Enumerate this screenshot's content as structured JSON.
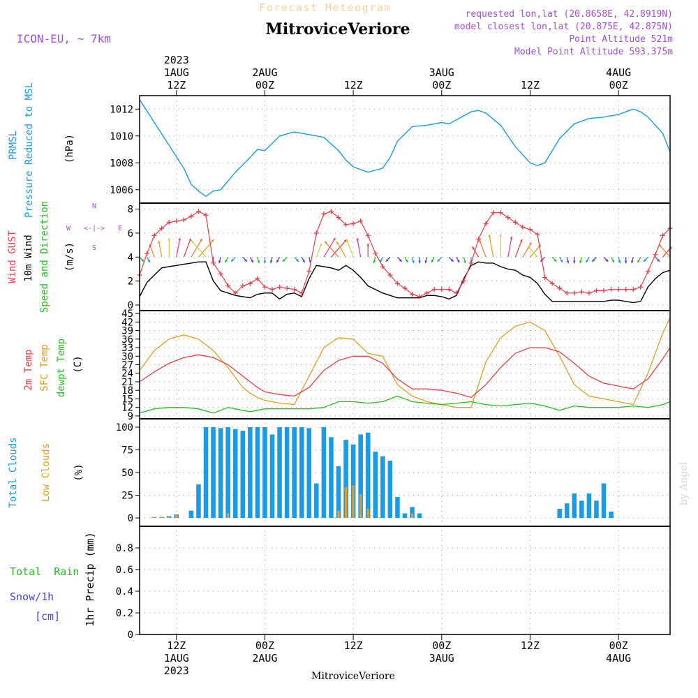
{
  "header": {
    "product_title": "Forecast Meteogram",
    "station_name": "MitroviceVeriore",
    "model_label": "ICON-EU,  ~ 7km",
    "requested_lonlat": "requested lon,lat (20.8658E, 42.8919N)",
    "closest_lonlat": "model closest lon,lat (20.875E, 42.875N)",
    "point_altitude": "Point Altitude 521m",
    "model_point_altitude": "Model Point Altitude 593.375m",
    "credit": "by Angel"
  },
  "colors": {
    "pressure": "#1a9be8",
    "gust": "#e8414a",
    "wind": "#000000",
    "temp": "#e8414a",
    "sfc_temp": "#e0a020",
    "dewpt": "#22c022",
    "total_clouds": "#1a9be8",
    "low_clouds": "#e0a020",
    "rain": "#22c022",
    "snow": "#4545e8",
    "meta": "#a050d8"
  },
  "time_axis": {
    "start_hour": 7,
    "end_hour": 79,
    "ticks": [
      {
        "hour": 12,
        "top": [
          "2023",
          "1AUG",
          "12Z"
        ],
        "bottom": [
          "12Z",
          "1AUG",
          "2023"
        ]
      },
      {
        "hour": 24,
        "top": [
          "2AUG",
          "00Z"
        ],
        "bottom": [
          "00Z",
          "2AUG"
        ]
      },
      {
        "hour": 36,
        "top": [
          "12Z"
        ],
        "bottom": [
          "12Z"
        ]
      },
      {
        "hour": 48,
        "top": [
          "3AUG",
          "00Z"
        ],
        "bottom": [
          "00Z",
          "3AUG"
        ]
      },
      {
        "hour": 60,
        "top": [
          "12Z"
        ],
        "bottom": [
          "12Z"
        ]
      },
      {
        "hour": 72,
        "top": [
          "4AUG",
          "00Z"
        ],
        "bottom": [
          "00Z",
          "4AUG"
        ]
      }
    ]
  },
  "panels": {
    "pressure": {
      "labels": [
        "PRMSL",
        "Pressure Reduced to MSL"
      ],
      "unit": "(hPa)"
    },
    "wind": {
      "labels": [
        "Wind GUST",
        "10m Wind",
        "Speed and Direction"
      ],
      "unit": "(m/s)",
      "compass": {
        "n": "N",
        "s": "S",
        "w": "W",
        "e": "E",
        "arrow": "<-|->"
      }
    },
    "temp": {
      "labels": [
        "2m Temp",
        "SFC Temp",
        "dewpt Temp"
      ],
      "unit": "(C)"
    },
    "clouds": {
      "labels": [
        "Total Clouds",
        "Low Clouds"
      ],
      "unit": "(%)"
    },
    "precip": {
      "labels": [
        "Total  Rain",
        "Snow/1h",
        "[cm]"
      ],
      "unit": "1hr Precip (mm)"
    }
  },
  "chart_data": [
    {
      "type": "line",
      "title": "PRMSL Pressure Reduced to MSL",
      "ylabel": "(hPa)",
      "ylim": [
        1005,
        1013
      ],
      "yticks": [
        1006,
        1008,
        1010,
        1012
      ],
      "x": [
        7,
        9,
        11,
        13,
        14,
        15,
        16,
        17,
        18,
        20,
        22,
        23,
        24,
        26,
        28,
        29,
        30,
        32,
        34,
        35,
        36,
        38,
        40,
        41,
        42,
        44,
        46,
        48,
        49,
        50,
        52,
        53,
        54,
        56,
        58,
        60,
        61,
        62,
        64,
        66,
        68,
        70,
        72,
        74,
        75,
        76,
        78,
        79
      ],
      "series": [
        {
          "name": "PRMSL",
          "values": [
            1012.7,
            1011.0,
            1009.3,
            1007.6,
            1006.4,
            1005.9,
            1005.5,
            1005.9,
            1006.0,
            1007.3,
            1008.4,
            1009.0,
            1008.9,
            1010.0,
            1010.3,
            1010.2,
            1010.1,
            1009.9,
            1008.9,
            1008.2,
            1007.7,
            1007.3,
            1007.6,
            1008.4,
            1009.6,
            1010.7,
            1010.8,
            1011.0,
            1010.9,
            1011.2,
            1011.8,
            1011.9,
            1011.7,
            1010.8,
            1009.2,
            1008.0,
            1007.8,
            1008.0,
            1009.8,
            1010.9,
            1011.3,
            1011.4,
            1011.6,
            1012.0,
            1011.8,
            1011.4,
            1010.2,
            1008.8
          ]
        }
      ]
    },
    {
      "type": "line",
      "title": "Wind GUST / 10m Wind Speed and Direction",
      "ylabel": "(m/s)",
      "ylim": [
        0,
        8.5
      ],
      "yticks": [
        0,
        2,
        4,
        6,
        8
      ],
      "x": [
        7,
        8,
        9,
        10,
        11,
        12,
        13,
        14,
        15,
        16,
        17,
        18,
        19,
        20,
        21,
        22,
        23,
        24,
        25,
        26,
        27,
        28,
        29,
        30,
        31,
        32,
        33,
        34,
        35,
        36,
        37,
        38,
        39,
        40,
        41,
        42,
        43,
        44,
        45,
        46,
        47,
        48,
        49,
        50,
        51,
        52,
        53,
        54,
        55,
        56,
        57,
        58,
        59,
        60,
        61,
        62,
        63,
        64,
        65,
        66,
        67,
        68,
        69,
        70,
        71,
        72,
        73,
        74,
        75,
        76,
        77,
        78,
        79
      ],
      "series": [
        {
          "name": "Wind GUST",
          "values": [
            2.5,
            4.3,
            5.8,
            6.4,
            6.9,
            7.0,
            7.1,
            7.4,
            7.8,
            7.5,
            3.5,
            2.6,
            1.6,
            1.0,
            1.6,
            1.8,
            2.2,
            1.5,
            1.3,
            1.5,
            1.4,
            1.3,
            1.0,
            2.8,
            6.0,
            7.6,
            7.8,
            7.3,
            6.7,
            6.8,
            7.0,
            5.8,
            4.3,
            3.2,
            2.5,
            1.8,
            1.4,
            0.9,
            0.7,
            1.0,
            1.3,
            1.3,
            1.3,
            1.0,
            2.0,
            3.5,
            5.5,
            6.8,
            7.7,
            7.7,
            7.3,
            6.9,
            6.5,
            6.3,
            5.9,
            2.3,
            1.8,
            1.4,
            1.0,
            1.0,
            1.1,
            1.0,
            1.2,
            1.2,
            1.3,
            1.3,
            1.3,
            1.3,
            1.5,
            2.8,
            4.2,
            5.8,
            6.4
          ]
        },
        {
          "name": "10m Wind",
          "values": [
            0.7,
            1.9,
            2.5,
            3.1,
            3.2,
            3.3,
            3.4,
            3.5,
            3.6,
            3.6,
            2.0,
            1.2,
            1.0,
            0.8,
            0.7,
            0.6,
            0.9,
            1.0,
            1.0,
            0.5,
            0.9,
            1.0,
            0.7,
            2.2,
            3.3,
            3.2,
            3.1,
            2.9,
            3.3,
            2.9,
            2.3,
            1.6,
            1.3,
            1.0,
            0.8,
            0.6,
            0.6,
            0.6,
            0.6,
            0.8,
            0.8,
            0.7,
            0.5,
            0.8,
            2.2,
            3.3,
            3.6,
            3.5,
            3.5,
            3.2,
            3.0,
            2.9,
            2.5,
            2.3,
            1.8,
            0.9,
            0.3,
            0.3,
            0.3,
            0.3,
            0.3,
            0.3,
            0.3,
            0.3,
            0.4,
            0.4,
            0.3,
            0.2,
            0.3,
            1.5,
            2.2,
            2.7,
            2.9
          ]
        }
      ]
    },
    {
      "type": "line",
      "title": "2m Temp / SFC Temp / dewpt Temp",
      "ylabel": "(C)",
      "ylim": [
        8,
        46
      ],
      "yticks": [
        9,
        12,
        15,
        18,
        21,
        24,
        27,
        30,
        33,
        36,
        39,
        42,
        45
      ],
      "x": [
        7,
        9,
        11,
        13,
        15,
        17,
        19,
        21,
        22,
        23,
        24,
        26,
        28,
        30,
        32,
        34,
        36,
        38,
        40,
        42,
        44,
        46,
        48,
        50,
        52,
        54,
        56,
        58,
        60,
        62,
        64,
        66,
        68,
        70,
        72,
        74,
        76,
        78,
        79
      ],
      "series": [
        {
          "name": "2m Temp",
          "values": [
            21.0,
            24.5,
            27.5,
            29.5,
            30.5,
            29.5,
            27.0,
            23.0,
            21.0,
            19.0,
            17.5,
            16.5,
            16.0,
            19.0,
            25.0,
            28.5,
            30.0,
            30.0,
            27.5,
            22.0,
            18.5,
            18.5,
            18.0,
            17.0,
            15.5,
            20.0,
            26.0,
            31.0,
            33.0,
            33.0,
            31.5,
            27.5,
            23.0,
            20.5,
            19.5,
            18.5,
            22.0,
            29.0,
            33.0
          ]
        },
        {
          "name": "SFC Temp",
          "values": [
            25.0,
            32.0,
            36.0,
            37.5,
            36.0,
            32.0,
            26.0,
            19.0,
            17.0,
            15.5,
            14.5,
            13.5,
            13.0,
            23.0,
            33.0,
            36.5,
            36.0,
            31.0,
            30.0,
            20.0,
            16.0,
            14.0,
            13.0,
            12.0,
            12.0,
            28.0,
            36.5,
            40.5,
            42.0,
            39.0,
            30.0,
            20.0,
            16.0,
            15.0,
            14.0,
            13.0,
            24.0,
            38.0,
            43.5
          ]
        },
        {
          "name": "dewpt Temp",
          "values": [
            10.0,
            11.5,
            12.0,
            12.0,
            11.5,
            10.0,
            12.0,
            11.0,
            10.5,
            11.0,
            11.5,
            11.5,
            11.5,
            11.5,
            12.0,
            14.0,
            14.0,
            13.5,
            14.0,
            16.0,
            14.0,
            13.5,
            13.0,
            13.5,
            14.0,
            13.0,
            12.5,
            13.0,
            13.5,
            12.5,
            11.0,
            12.5,
            12.0,
            12.0,
            12.0,
            12.5,
            12.0,
            13.0,
            14.0
          ]
        }
      ]
    },
    {
      "type": "bar",
      "title": "Total Clouds / Low Clouds",
      "ylabel": "(%)",
      "ylim": [
        0,
        100
      ],
      "yticks": [
        0,
        25,
        50,
        75,
        100
      ],
      "x": [
        7,
        8,
        9,
        10,
        11,
        12,
        13,
        14,
        15,
        16,
        17,
        18,
        19,
        20,
        21,
        22,
        23,
        24,
        25,
        26,
        27,
        28,
        29,
        30,
        31,
        32,
        33,
        34,
        35,
        36,
        37,
        38,
        39,
        40,
        41,
        42,
        43,
        44,
        45,
        46,
        47,
        48,
        49,
        50,
        51,
        52,
        53,
        54,
        55,
        56,
        57,
        58,
        59,
        60,
        61,
        62,
        63,
        64,
        65,
        66,
        67,
        68,
        69,
        70,
        71,
        72,
        73,
        74,
        75,
        76,
        77,
        78,
        79
      ],
      "series": [
        {
          "name": "Total Clouds",
          "values": [
            0,
            0,
            1,
            1,
            2,
            4,
            0,
            8,
            37,
            100,
            100,
            99,
            100,
            98,
            96,
            100,
            100,
            100,
            92,
            100,
            100,
            100,
            100,
            99,
            38,
            100,
            89,
            57,
            86,
            81,
            92,
            94,
            73,
            68,
            63,
            23,
            5,
            12,
            5,
            0,
            0,
            0,
            0,
            0,
            0,
            0,
            0,
            0,
            0,
            0,
            0,
            0,
            0,
            0,
            0,
            0,
            0,
            10,
            16,
            27,
            19,
            27,
            19,
            38,
            7,
            0,
            0,
            0,
            0,
            0,
            0,
            0,
            0
          ]
        },
        {
          "name": "Low Clouds",
          "values": [
            0,
            0,
            1,
            1,
            2,
            4,
            0,
            0,
            0,
            0,
            0,
            0,
            5,
            0,
            0,
            0,
            0,
            0,
            0,
            0,
            0,
            0,
            0,
            0,
            0,
            0,
            0,
            8,
            34,
            36,
            26,
            10,
            0,
            0,
            0,
            0,
            0,
            5,
            0,
            0,
            0,
            0,
            0,
            0,
            0,
            0,
            0,
            0,
            0,
            0,
            0,
            0,
            0,
            0,
            0,
            0,
            0,
            0,
            0,
            0,
            0,
            0,
            0,
            0,
            0,
            0,
            0,
            0,
            0,
            0,
            0,
            0,
            0
          ]
        }
      ]
    },
    {
      "type": "bar",
      "title": "1hr Precip",
      "ylabel": "1hr Precip (mm)",
      "ylim": [
        0,
        1
      ],
      "yticks": [
        0,
        0.2,
        0.4,
        0.6,
        0.8
      ],
      "series": [
        {
          "name": "Total Rain",
          "values": []
        },
        {
          "name": "Snow/1h",
          "values": []
        }
      ]
    }
  ]
}
